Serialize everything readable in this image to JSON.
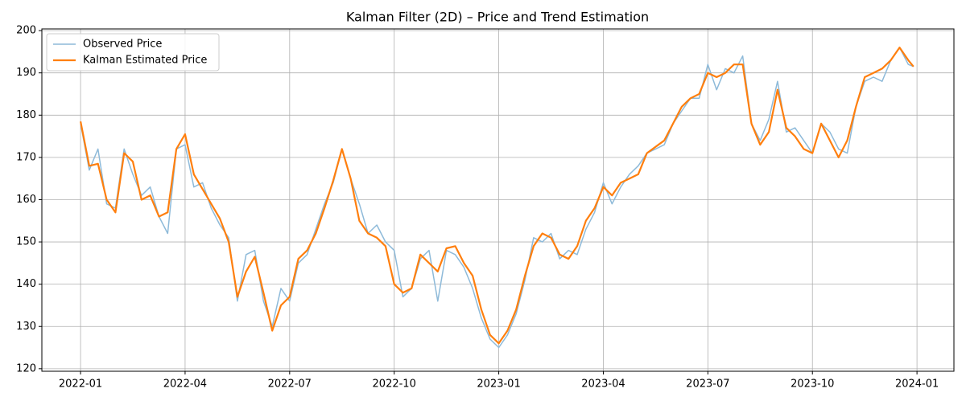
{
  "chart_data": {
    "type": "line",
    "title": "Kalman Filter (2D) – Price and Trend Estimation",
    "x": [
      0,
      0.25,
      0.5,
      0.75,
      1,
      1.25,
      1.5,
      1.75,
      2,
      2.25,
      2.5,
      2.75,
      3,
      3.25,
      3.5,
      3.75,
      4,
      4.25,
      4.5,
      4.75,
      5,
      5.25,
      5.5,
      5.75,
      6,
      6.25,
      6.5,
      6.75,
      7,
      7.25,
      7.5,
      7.75,
      8,
      8.25,
      8.5,
      8.75,
      9,
      9.25,
      9.5,
      9.75,
      10,
      10.25,
      10.5,
      10.75,
      11,
      11.25,
      11.5,
      11.75,
      12,
      12.25,
      12.5,
      12.75,
      13,
      13.25,
      13.5,
      13.75,
      14,
      14.25,
      14.5,
      14.75,
      15,
      15.25,
      15.5,
      15.75,
      16,
      16.25,
      16.5,
      16.75,
      17,
      17.25,
      17.5,
      17.75,
      18,
      18.25,
      18.5,
      18.75,
      19,
      19.25,
      19.5,
      19.75,
      20,
      20.25,
      20.5,
      20.75,
      21,
      21.25,
      21.5,
      21.75,
      22,
      22.25,
      22.5,
      22.75,
      23,
      23.25,
      23.5,
      23.75,
      23.9
    ],
    "series": [
      {
        "name": "Observed Price",
        "color": "#8ebad9",
        "values": [
          178,
          167,
          172,
          159,
          158,
          172,
          166,
          161,
          163,
          156,
          152,
          172,
          173,
          163,
          164,
          158,
          154,
          151,
          136,
          147,
          148,
          136,
          130,
          139,
          136,
          145,
          147,
          153,
          159,
          164,
          172,
          165,
          159,
          152,
          154,
          150,
          148,
          137,
          139,
          146,
          148,
          136,
          148,
          147,
          144,
          139,
          132,
          127,
          125,
          128,
          133,
          141,
          151,
          150,
          152,
          146,
          148,
          147,
          153,
          157,
          164,
          159,
          163,
          166,
          168,
          171,
          172,
          173,
          178,
          181,
          184,
          184,
          192,
          186,
          191,
          190,
          194,
          178,
          174,
          179,
          188,
          176,
          177,
          174,
          171,
          178,
          176,
          172,
          171,
          182,
          188,
          189,
          188,
          193,
          196,
          192,
          191.5
        ],
        "linewidth": 1.5
      },
      {
        "name": "Kalman Estimated Price",
        "color": "#ff7f0e",
        "values": [
          178.5,
          168,
          168.5,
          160,
          157,
          171,
          169,
          160,
          161,
          156,
          157,
          172,
          175.5,
          166,
          162.5,
          159,
          155.5,
          150,
          137,
          143,
          146.5,
          138,
          129,
          135,
          137,
          146,
          148,
          152,
          158,
          164.5,
          172,
          165,
          155,
          152,
          151,
          149,
          140,
          138,
          139,
          147,
          145,
          143,
          148.5,
          149,
          145,
          142,
          134,
          128,
          126,
          129,
          134,
          142,
          149,
          152,
          151,
          147,
          146,
          149,
          155,
          158,
          163,
          161,
          164,
          165,
          166,
          171,
          172.5,
          174,
          178,
          182,
          184,
          185,
          190,
          189,
          190,
          192,
          192,
          178,
          173,
          176,
          186,
          177,
          175,
          172,
          171,
          178,
          174,
          170,
          174,
          182,
          189,
          190,
          191,
          193,
          196,
          193,
          191.5
        ],
        "linewidth": 2.2
      }
    ],
    "xticks": [
      {
        "value": 0,
        "label": "2022-01"
      },
      {
        "value": 3,
        "label": "2022-04"
      },
      {
        "value": 6,
        "label": "2022-07"
      },
      {
        "value": 9,
        "label": "2022-10"
      },
      {
        "value": 12,
        "label": "2023-01"
      },
      {
        "value": 15,
        "label": "2023-04"
      },
      {
        "value": 18,
        "label": "2023-07"
      },
      {
        "value": 21,
        "label": "2023-10"
      },
      {
        "value": 24,
        "label": "2024-01"
      }
    ],
    "xlim": [
      -1.11,
      25.06
    ],
    "yticks": [
      120,
      130,
      140,
      150,
      160,
      170,
      180,
      190,
      200
    ],
    "ylim": [
      119.4,
      200.4
    ],
    "grid": true,
    "legend": "upper left"
  }
}
